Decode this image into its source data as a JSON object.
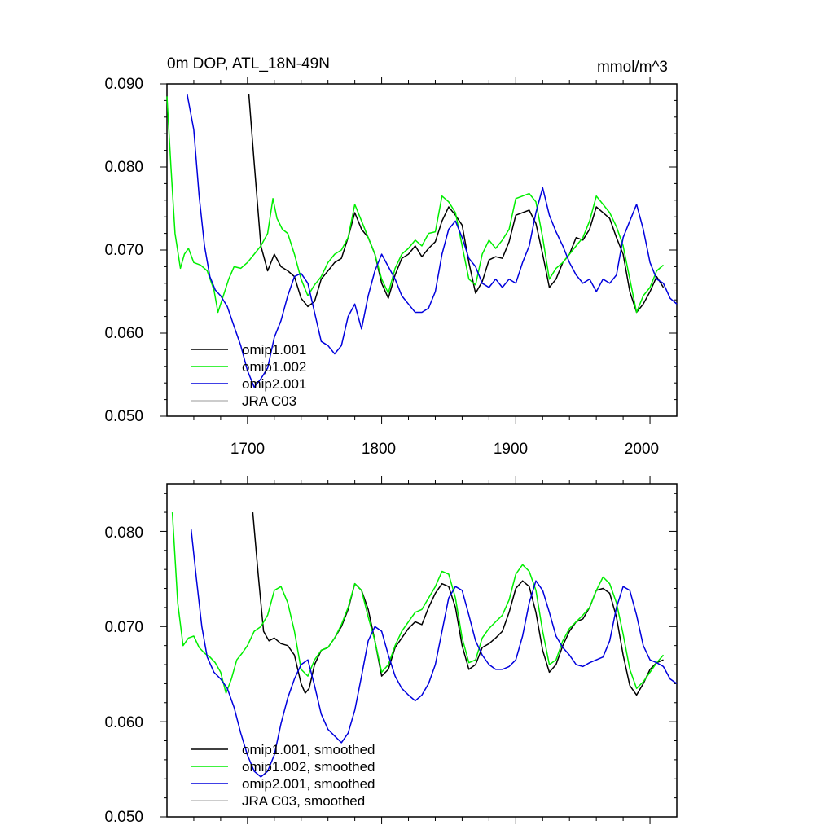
{
  "chart_data": [
    {
      "type": "line",
      "title": "0m DOP, ATL_18N-49N",
      "units": "mmol/m^3",
      "xlim": [
        1640,
        2020
      ],
      "ylim": [
        0.05,
        0.09
      ],
      "xticks": [
        1700,
        1800,
        1900,
        2000
      ],
      "xtick_labels": [
        "1700",
        "1800",
        "1900",
        "2000"
      ],
      "yticks": [
        0.05,
        0.06,
        0.07,
        0.08,
        0.09
      ],
      "ytick_labels": [
        "0.050",
        "0.060",
        "0.070",
        "0.080",
        "0.090"
      ],
      "legend_position": "bottom-left",
      "series": [
        {
          "name": "omip1.001",
          "color": "#000000",
          "x": [
            1701,
            1705,
            1710,
            1715,
            1720,
            1725,
            1730,
            1735,
            1740,
            1745,
            1750,
            1755,
            1760,
            1765,
            1770,
            1775,
            1780,
            1785,
            1790,
            1795,
            1800,
            1805,
            1810,
            1815,
            1820,
            1825,
            1830,
            1835,
            1840,
            1845,
            1850,
            1855,
            1860,
            1865,
            1870,
            1875,
            1880,
            1885,
            1890,
            1895,
            1900,
            1905,
            1910,
            1915,
            1920,
            1925,
            1930,
            1935,
            1940,
            1945,
            1950,
            1955,
            1960,
            1965,
            1970,
            1975,
            1980,
            1985,
            1990,
            1995,
            2000,
            2005,
            2010
          ],
          "y": [
            0.0888,
            0.0805,
            0.0705,
            0.0675,
            0.0695,
            0.068,
            0.0675,
            0.0668,
            0.0642,
            0.0632,
            0.0638,
            0.0665,
            0.0675,
            0.0685,
            0.069,
            0.0715,
            0.0745,
            0.0725,
            0.0715,
            0.0695,
            0.066,
            0.0642,
            0.067,
            0.069,
            0.0695,
            0.0705,
            0.0692,
            0.0702,
            0.071,
            0.0735,
            0.0752,
            0.0742,
            0.073,
            0.0685,
            0.0648,
            0.0662,
            0.0688,
            0.0692,
            0.069,
            0.071,
            0.0742,
            0.0745,
            0.0748,
            0.0732,
            0.0695,
            0.0655,
            0.0665,
            0.0685,
            0.0695,
            0.0715,
            0.0712,
            0.0725,
            0.0752,
            0.0745,
            0.0738,
            0.0715,
            0.0695,
            0.065,
            0.0625,
            0.0635,
            0.065,
            0.0668,
            0.0655
          ]
        },
        {
          "name": "omip1.002",
          "color": "#00ee00",
          "x": [
            1640,
            1643,
            1646,
            1650,
            1653,
            1656,
            1660,
            1665,
            1670,
            1675,
            1678,
            1682,
            1686,
            1690,
            1695,
            1700,
            1705,
            1710,
            1715,
            1719,
            1722,
            1726,
            1730,
            1735,
            1740,
            1745,
            1750,
            1755,
            1760,
            1765,
            1770,
            1775,
            1780,
            1785,
            1790,
            1795,
            1800,
            1805,
            1810,
            1815,
            1820,
            1825,
            1830,
            1835,
            1840,
            1845,
            1850,
            1855,
            1860,
            1865,
            1870,
            1875,
            1880,
            1885,
            1890,
            1895,
            1900,
            1905,
            1910,
            1915,
            1920,
            1925,
            1930,
            1935,
            1940,
            1945,
            1950,
            1955,
            1960,
            1965,
            1970,
            1975,
            1980,
            1985,
            1990,
            1995,
            2000,
            2005,
            2010
          ],
          "y": [
            0.0885,
            0.08,
            0.072,
            0.0678,
            0.0695,
            0.0702,
            0.0685,
            0.0682,
            0.0675,
            0.0652,
            0.0625,
            0.0645,
            0.0665,
            0.068,
            0.0678,
            0.0685,
            0.0695,
            0.0705,
            0.072,
            0.0762,
            0.0738,
            0.0725,
            0.072,
            0.0695,
            0.0665,
            0.0645,
            0.0658,
            0.0668,
            0.0685,
            0.0695,
            0.07,
            0.0715,
            0.0755,
            0.0735,
            0.0715,
            0.0695,
            0.0665,
            0.0648,
            0.0678,
            0.0695,
            0.0702,
            0.0712,
            0.0705,
            0.072,
            0.0722,
            0.0765,
            0.0758,
            0.0745,
            0.0705,
            0.0665,
            0.0658,
            0.0695,
            0.0712,
            0.0702,
            0.0712,
            0.0725,
            0.0762,
            0.0765,
            0.0768,
            0.0758,
            0.0715,
            0.0665,
            0.0678,
            0.0685,
            0.0695,
            0.0705,
            0.0715,
            0.0735,
            0.0765,
            0.0755,
            0.0745,
            0.0728,
            0.0705,
            0.0665,
            0.0625,
            0.0645,
            0.0655,
            0.0675,
            0.0682
          ]
        },
        {
          "name": "omip2.001",
          "color": "#0000dd",
          "x": [
            1655,
            1660,
            1664,
            1668,
            1672,
            1676,
            1680,
            1685,
            1690,
            1695,
            1700,
            1705,
            1710,
            1715,
            1720,
            1725,
            1730,
            1735,
            1740,
            1745,
            1750,
            1755,
            1760,
            1765,
            1770,
            1775,
            1780,
            1785,
            1790,
            1795,
            1800,
            1805,
            1810,
            1815,
            1820,
            1825,
            1830,
            1835,
            1840,
            1845,
            1850,
            1855,
            1860,
            1865,
            1870,
            1875,
            1880,
            1885,
            1890,
            1895,
            1900,
            1905,
            1910,
            1915,
            1920,
            1925,
            1930,
            1935,
            1940,
            1945,
            1950,
            1955,
            1960,
            1965,
            1970,
            1975,
            1980,
            1985,
            1990,
            1995,
            2000,
            2005,
            2010,
            2015,
            2020
          ],
          "y": [
            0.0888,
            0.0845,
            0.0765,
            0.0705,
            0.0668,
            0.0652,
            0.0645,
            0.0632,
            0.0608,
            0.0585,
            0.0555,
            0.0535,
            0.0545,
            0.0558,
            0.0595,
            0.0615,
            0.0645,
            0.0668,
            0.0672,
            0.066,
            0.0625,
            0.059,
            0.0585,
            0.0575,
            0.0585,
            0.062,
            0.0635,
            0.0605,
            0.0645,
            0.0675,
            0.0695,
            0.068,
            0.0665,
            0.0645,
            0.0635,
            0.0625,
            0.0625,
            0.063,
            0.065,
            0.0695,
            0.0725,
            0.0735,
            0.0715,
            0.069,
            0.068,
            0.066,
            0.0655,
            0.0665,
            0.0655,
            0.0665,
            0.066,
            0.0685,
            0.0705,
            0.0745,
            0.0775,
            0.0742,
            0.0722,
            0.0705,
            0.0685,
            0.067,
            0.066,
            0.0665,
            0.065,
            0.0665,
            0.066,
            0.067,
            0.0715,
            0.0735,
            0.0755,
            0.0725,
            0.0685,
            0.0665,
            0.066,
            0.0642,
            0.0635
          ]
        },
        {
          "name": "JRA C03",
          "color": "#bbbbbb",
          "x": [],
          "y": []
        }
      ]
    },
    {
      "type": "line",
      "title": "",
      "xlim": [
        1640,
        2020
      ],
      "ylim": [
        0.05,
        0.085
      ],
      "xticks": [
        1700,
        1800,
        1900,
        2000
      ],
      "yticks": [
        0.05,
        0.06,
        0.07,
        0.08
      ],
      "ytick_labels": [
        "0.050",
        "0.060",
        "0.070",
        "0.080"
      ],
      "legend_position": "bottom-left",
      "series": [
        {
          "name": "omip1.001, smoothed",
          "color": "#000000",
          "x": [
            1704,
            1708,
            1712,
            1716,
            1720,
            1725,
            1730,
            1735,
            1740,
            1743,
            1746,
            1750,
            1755,
            1760,
            1765,
            1770,
            1775,
            1780,
            1785,
            1790,
            1795,
            1800,
            1805,
            1810,
            1815,
            1820,
            1825,
            1830,
            1835,
            1840,
            1845,
            1850,
            1855,
            1860,
            1865,
            1870,
            1875,
            1880,
            1885,
            1890,
            1895,
            1900,
            1905,
            1910,
            1915,
            1920,
            1925,
            1930,
            1935,
            1940,
            1945,
            1950,
            1955,
            1960,
            1965,
            1970,
            1975,
            1980,
            1985,
            1990,
            1995,
            2000,
            2005,
            2010
          ],
          "y": [
            0.082,
            0.0755,
            0.0695,
            0.0685,
            0.0688,
            0.0682,
            0.068,
            0.067,
            0.064,
            0.063,
            0.0635,
            0.066,
            0.0675,
            0.0678,
            0.0688,
            0.07,
            0.0718,
            0.0745,
            0.0738,
            0.0718,
            0.0685,
            0.0648,
            0.0655,
            0.0678,
            0.0688,
            0.0698,
            0.0705,
            0.0702,
            0.072,
            0.0735,
            0.0745,
            0.0742,
            0.072,
            0.068,
            0.0655,
            0.066,
            0.0678,
            0.0682,
            0.0688,
            0.0695,
            0.0715,
            0.074,
            0.0748,
            0.0742,
            0.0715,
            0.0675,
            0.0652,
            0.066,
            0.068,
            0.0695,
            0.0705,
            0.0708,
            0.072,
            0.0738,
            0.074,
            0.0735,
            0.071,
            0.067,
            0.0638,
            0.0628,
            0.064,
            0.0655,
            0.0662,
            0.0665
          ]
        },
        {
          "name": "omip1.002, smoothed",
          "color": "#00ee00",
          "x": [
            1644,
            1648,
            1652,
            1656,
            1660,
            1664,
            1668,
            1672,
            1676,
            1680,
            1684,
            1688,
            1692,
            1696,
            1700,
            1705,
            1710,
            1715,
            1720,
            1725,
            1730,
            1735,
            1740,
            1745,
            1750,
            1755,
            1760,
            1765,
            1770,
            1775,
            1780,
            1785,
            1790,
            1795,
            1800,
            1805,
            1810,
            1815,
            1820,
            1825,
            1830,
            1835,
            1840,
            1845,
            1850,
            1855,
            1860,
            1865,
            1870,
            1875,
            1880,
            1885,
            1890,
            1895,
            1900,
            1905,
            1910,
            1915,
            1920,
            1925,
            1930,
            1935,
            1940,
            1945,
            1950,
            1955,
            1960,
            1965,
            1970,
            1975,
            1980,
            1985,
            1990,
            1995,
            2000,
            2005,
            2010
          ],
          "y": [
            0.082,
            0.0725,
            0.068,
            0.0688,
            0.069,
            0.0678,
            0.0672,
            0.0668,
            0.0662,
            0.0652,
            0.063,
            0.0645,
            0.0665,
            0.0672,
            0.068,
            0.0695,
            0.07,
            0.0712,
            0.0738,
            0.0742,
            0.0725,
            0.0695,
            0.0655,
            0.0648,
            0.0665,
            0.0675,
            0.0678,
            0.0688,
            0.0702,
            0.072,
            0.0745,
            0.0738,
            0.071,
            0.0685,
            0.0652,
            0.066,
            0.068,
            0.0695,
            0.0705,
            0.0715,
            0.0718,
            0.073,
            0.0742,
            0.0758,
            0.0755,
            0.073,
            0.0688,
            0.0662,
            0.0665,
            0.0688,
            0.0698,
            0.0705,
            0.0712,
            0.0728,
            0.0755,
            0.0765,
            0.0758,
            0.0738,
            0.0695,
            0.066,
            0.0665,
            0.0685,
            0.0698,
            0.0705,
            0.0712,
            0.072,
            0.0738,
            0.0752,
            0.0745,
            0.0725,
            0.0692,
            0.0655,
            0.0635,
            0.0642,
            0.0652,
            0.0662,
            0.067
          ]
        },
        {
          "name": "omip2.001, smoothed",
          "color": "#0000dd",
          "x": [
            1658,
            1662,
            1666,
            1670,
            1675,
            1680,
            1685,
            1690,
            1695,
            1700,
            1705,
            1710,
            1715,
            1720,
            1725,
            1730,
            1735,
            1740,
            1745,
            1750,
            1755,
            1760,
            1765,
            1770,
            1775,
            1780,
            1785,
            1790,
            1795,
            1800,
            1805,
            1810,
            1815,
            1820,
            1825,
            1830,
            1835,
            1840,
            1845,
            1850,
            1855,
            1860,
            1865,
            1870,
            1875,
            1880,
            1885,
            1890,
            1895,
            1900,
            1905,
            1910,
            1915,
            1920,
            1925,
            1930,
            1935,
            1940,
            1945,
            1950,
            1955,
            1960,
            1965,
            1970,
            1975,
            1980,
            1985,
            1990,
            1995,
            2000,
            2005,
            2010,
            2015,
            2020
          ],
          "y": [
            0.0802,
            0.075,
            0.07,
            0.0668,
            0.0652,
            0.0645,
            0.0635,
            0.0615,
            0.0588,
            0.0565,
            0.0548,
            0.0542,
            0.0548,
            0.0565,
            0.0598,
            0.0625,
            0.0645,
            0.066,
            0.0665,
            0.0638,
            0.0608,
            0.0592,
            0.0585,
            0.0578,
            0.0588,
            0.0612,
            0.0648,
            0.0685,
            0.07,
            0.0695,
            0.067,
            0.0648,
            0.0635,
            0.0628,
            0.0622,
            0.0628,
            0.064,
            0.066,
            0.0695,
            0.073,
            0.0742,
            0.0738,
            0.0712,
            0.0685,
            0.067,
            0.066,
            0.0655,
            0.0655,
            0.0658,
            0.0665,
            0.069,
            0.0725,
            0.0748,
            0.0738,
            0.0715,
            0.069,
            0.0678,
            0.067,
            0.066,
            0.0658,
            0.0662,
            0.0665,
            0.0668,
            0.0685,
            0.072,
            0.0742,
            0.0738,
            0.0712,
            0.068,
            0.0665,
            0.0662,
            0.0658,
            0.0645,
            0.064
          ]
        },
        {
          "name": "JRA C03, smoothed",
          "color": "#bbbbbb",
          "x": [],
          "y": []
        }
      ]
    }
  ]
}
